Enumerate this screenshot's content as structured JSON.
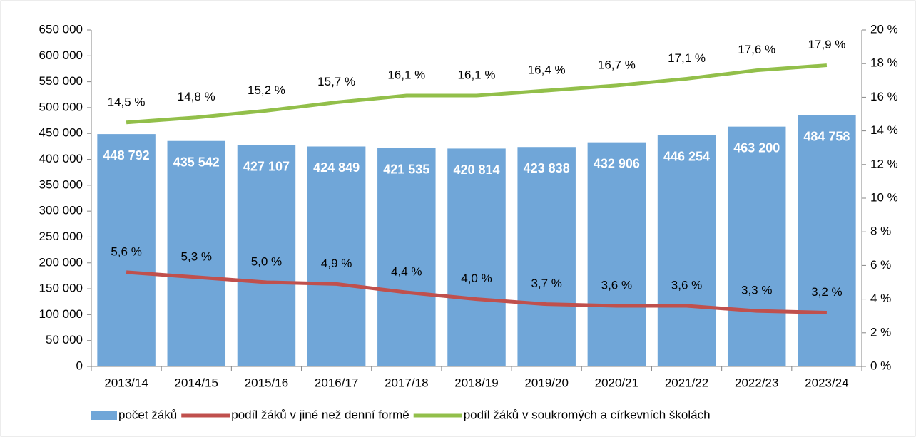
{
  "chart_data": {
    "type": "bar",
    "categories": [
      "2013/14",
      "2014/15",
      "2015/16",
      "2016/17",
      "2017/18",
      "2018/19",
      "2019/20",
      "2020/21",
      "2021/22",
      "2022/23",
      "2023/24"
    ],
    "series": [
      {
        "name": "počet žáků",
        "type": "bar",
        "color": "#70a6d8",
        "values": [
          448792,
          435542,
          427107,
          424849,
          421535,
          420814,
          423838,
          432906,
          446254,
          463200,
          484758
        ],
        "value_labels": [
          "448 792",
          "435 542",
          "427 107",
          "424 849",
          "421 535",
          "420 814",
          "423 838",
          "432 906",
          "446 254",
          "463 200",
          "484 758"
        ]
      },
      {
        "name": "podíl žáků v jiné než denní formě",
        "type": "line",
        "axis": "y2",
        "color": "#c0504d",
        "values": [
          5.6,
          5.3,
          5.0,
          4.9,
          4.4,
          4.0,
          3.7,
          3.6,
          3.6,
          3.3,
          3.2
        ],
        "value_labels": [
          "5,6 %",
          "5,3 %",
          "5,0 %",
          "4,9 %",
          "4,4 %",
          "4,0 %",
          "3,7 %",
          "3,6 %",
          "3,6 %",
          "3,3 %",
          "3,2 %"
        ]
      },
      {
        "name": "podíl žáků v soukromých a církevních školách",
        "type": "line",
        "axis": "y2",
        "color": "#92bf4a",
        "values": [
          14.5,
          14.8,
          15.2,
          15.7,
          16.1,
          16.1,
          16.4,
          16.7,
          17.1,
          17.6,
          17.9
        ],
        "value_labels": [
          "14,5 %",
          "14,8 %",
          "15,2 %",
          "15,7 %",
          "16,1 %",
          "16,1 %",
          "16,4 %",
          "16,7 %",
          "17,1 %",
          "17,6 %",
          "17,9 %"
        ]
      }
    ],
    "ylim": [
      0,
      650000
    ],
    "yticks": [
      0,
      {
        "value": 50000,
        "label": "50 000"
      },
      {
        "value": 100000,
        "label": "100 000"
      },
      {
        "value": 150000,
        "label": "150 000"
      },
      {
        "value": 200000,
        "label": "200 000"
      },
      {
        "value": 250000,
        "label": "250 000"
      },
      {
        "value": 300000,
        "label": "300 000"
      },
      {
        "value": 350000,
        "label": "350 000"
      },
      {
        "value": 400000,
        "label": "400 000"
      },
      {
        "value": 450000,
        "label": "450 000"
      },
      {
        "value": 500000,
        "label": "500 000"
      },
      {
        "value": 550000,
        "label": "550 000"
      },
      {
        "value": 600000,
        "label": "600 000"
      },
      {
        "value": 650000,
        "label": "650 000"
      }
    ],
    "y2lim": [
      0,
      20
    ],
    "y2ticks": [
      {
        "value": 0,
        "label": "0 %"
      },
      {
        "value": 2,
        "label": "2 %"
      },
      {
        "value": 4,
        "label": "4 %"
      },
      {
        "value": 6,
        "label": "6 %"
      },
      {
        "value": 8,
        "label": "8 %"
      },
      {
        "value": 10,
        "label": "10 %"
      },
      {
        "value": 12,
        "label": "12 %"
      },
      {
        "value": 14,
        "label": "14 %"
      },
      {
        "value": 16,
        "label": "16 %"
      },
      {
        "value": 18,
        "label": "18 %"
      },
      {
        "value": 20,
        "label": "20 %"
      }
    ],
    "legend": "bottom"
  }
}
